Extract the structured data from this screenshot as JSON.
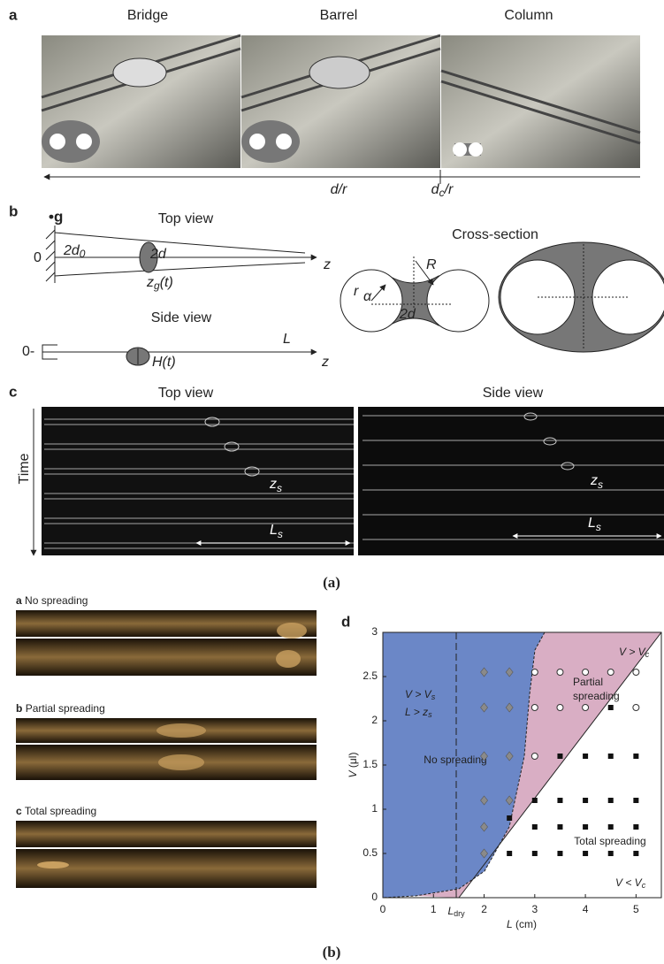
{
  "figure_a": {
    "panel_a": {
      "label": "a",
      "titles": [
        "Bridge",
        "Barrel",
        "Column"
      ],
      "d_r": "d/r",
      "dc": {
        "main": "d",
        "sub": "c",
        "rest": "/r"
      }
    },
    "panel_b": {
      "label": "b",
      "gravity": "•g",
      "top_view": "Top view",
      "zero_top": "0",
      "width0": {
        "main": "2d",
        "sub": "0"
      },
      "width": "2d",
      "zg": {
        "main": "z",
        "sub": "g",
        "rest": "(t)"
      },
      "z_top": "z",
      "side_view": "Side view",
      "zero_side": "0-",
      "height": "H(t)",
      "length": "L",
      "z_side": "z",
      "cross_section": "Cross-section",
      "radius_R": "R",
      "radius_r": "r",
      "alpha": "α",
      "gap": "2d"
    },
    "panel_c": {
      "label": "c",
      "top_view": "Top view",
      "side_view": "Side view",
      "time": "Time",
      "zs_top": {
        "main": "z",
        "sub": "s"
      },
      "ls_top": {
        "main": "L",
        "sub": "s"
      },
      "zs_side": {
        "main": "z",
        "sub": "s"
      },
      "ls_side": {
        "main": "L",
        "sub": "s"
      }
    },
    "caption": "(a)"
  },
  "figure_b": {
    "photos": [
      {
        "label": "a",
        "title": "No spreading"
      },
      {
        "label": "b",
        "title": "Partial spreading"
      },
      {
        "label": "c",
        "title": "Total spreading"
      }
    ],
    "phase_diagram": {
      "label": "d",
      "ylabel": {
        "main": "V",
        "rest": " (μl)"
      },
      "xlabel": {
        "main": "L",
        "rest": " (cm)"
      },
      "xlim": [
        0,
        5.5
      ],
      "ylim": [
        0,
        3
      ],
      "xticks": [
        0,
        1,
        {
          "value": 1.45,
          "label": "L",
          "sub": "dry"
        },
        2,
        3,
        4,
        5
      ],
      "yticks": [
        0,
        0.5,
        1,
        1.5,
        2,
        2.5,
        3
      ],
      "regions": {
        "no_spreading": {
          "cond1": {
            "a": "V > V",
            "sub": "s"
          },
          "cond2": {
            "a": "L > z",
            "sub": "s"
          },
          "name": "No spreading"
        },
        "partial": {
          "cond": {
            "a": "V > V",
            "sub": "c"
          },
          "name1": "Partial",
          "name2": "spreading"
        },
        "total": {
          "name": "Total spreading",
          "cond": {
            "a": "V < V",
            "sub": "c"
          }
        }
      },
      "series": [
        {
          "marker": "diamond",
          "color": "#8a8a8a",
          "x": [
            2,
            2.5,
            2,
            2.5,
            2,
            2.5,
            2,
            2.5,
            2,
            2
          ],
          "y": [
            2.55,
            2.55,
            2.15,
            2.15,
            1.6,
            1.6,
            1.1,
            1.1,
            0.8,
            0.5
          ]
        },
        {
          "marker": "circle",
          "color": "#ffffff",
          "x": [
            3,
            3.5,
            4,
            4.5,
            5,
            3,
            3.5,
            4,
            5,
            3
          ],
          "y": [
            2.55,
            2.55,
            2.55,
            2.55,
            2.55,
            2.15,
            2.15,
            2.15,
            2.15,
            1.6
          ]
        },
        {
          "marker": "square",
          "color": "#111111",
          "x": [
            4.5,
            3.5,
            4,
            4.5,
            5,
            3,
            3.5,
            4,
            4.5,
            5,
            2.5,
            3,
            3.5,
            4,
            4.5,
            5,
            2.5,
            3,
            3.5,
            4,
            4.5,
            5
          ],
          "y": [
            2.15,
            1.6,
            1.6,
            1.6,
            1.6,
            1.1,
            1.1,
            1.1,
            1.1,
            1.1,
            0.9,
            0.8,
            0.8,
            0.8,
            0.8,
            0.8,
            0.5,
            0.5,
            0.5,
            0.5,
            0.5,
            0.5
          ]
        }
      ]
    },
    "caption": "(b)"
  }
}
